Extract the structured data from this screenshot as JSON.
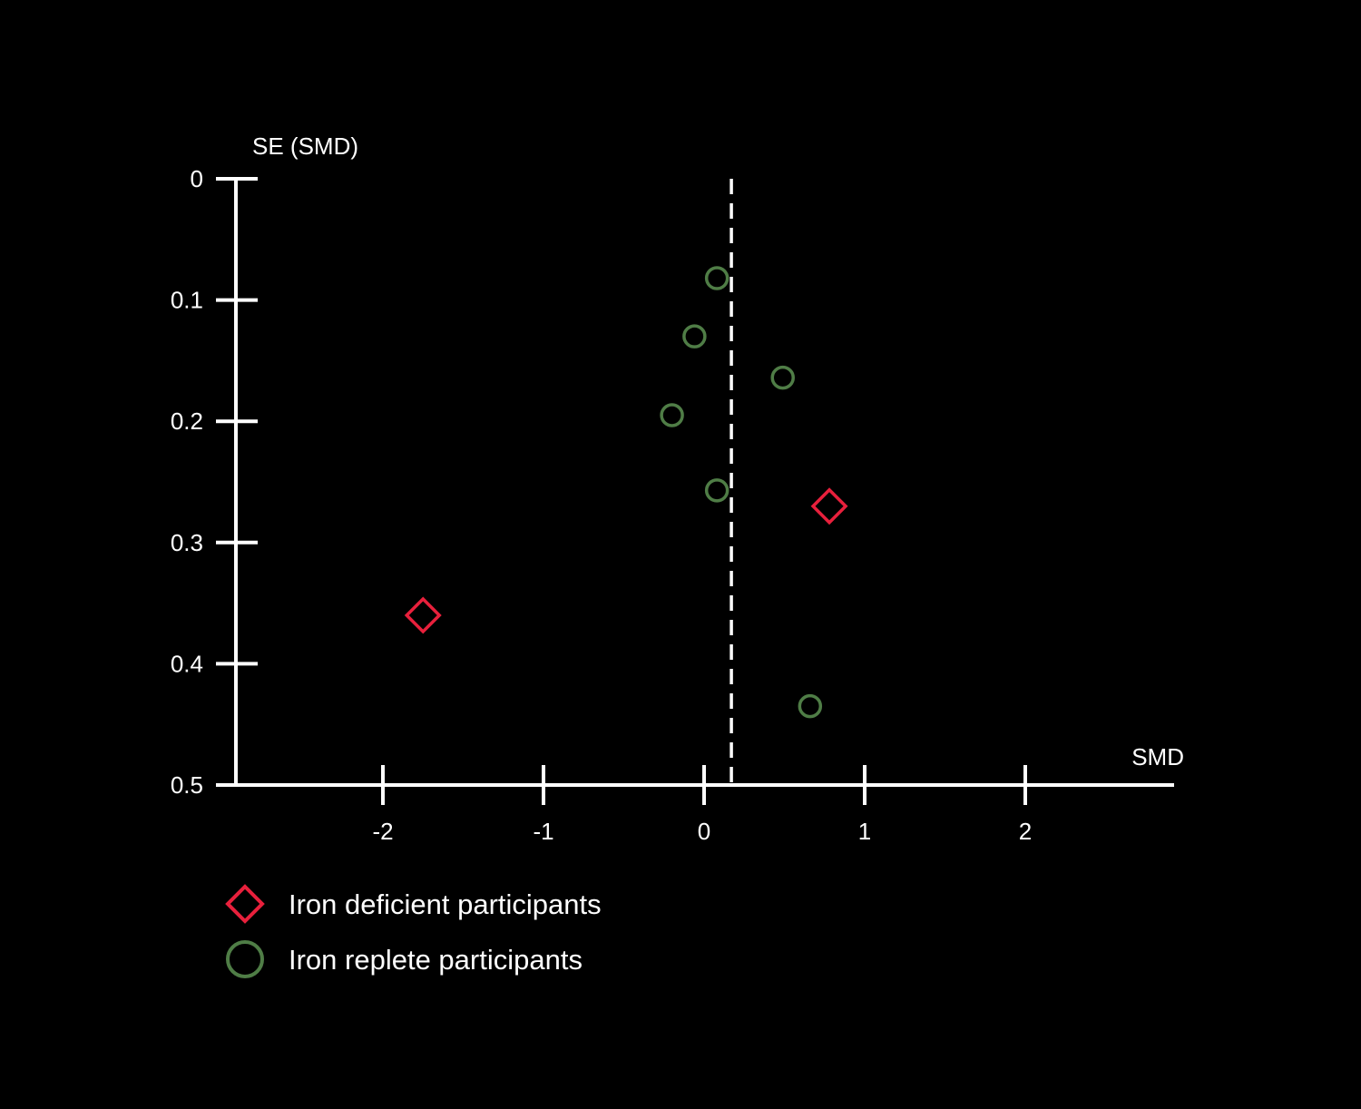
{
  "chart_data": {
    "type": "scatter",
    "title": "",
    "xlabel": "SMD",
    "ylabel": "SE (SMD)",
    "x_ticks": [
      -2,
      -1,
      0,
      1,
      2
    ],
    "x_tick_labels": [
      "-2",
      "-1",
      "0",
      "1",
      "2"
    ],
    "y_ticks": [
      0,
      0.1,
      0.2,
      0.3,
      0.4,
      0.5
    ],
    "y_tick_labels": [
      "0",
      "0.1",
      "0.2",
      "0.3",
      "0.4",
      "0.5"
    ],
    "ylim": [
      0,
      0.5
    ],
    "y_inverted": true,
    "grid": false,
    "reference_line_x": 0.17,
    "reference_line_style": "dashed",
    "legend_position": "bottom-left",
    "series": [
      {
        "name": "Iron deficient participants",
        "marker": "diamond",
        "color": "#e8203c",
        "points": [
          {
            "x": 0.78,
            "y": 0.27
          },
          {
            "x": -1.75,
            "y": 0.36
          }
        ]
      },
      {
        "name": "Iron replete participants",
        "marker": "circle",
        "color": "#4f7d46",
        "points": [
          {
            "x": 0.08,
            "y": 0.082
          },
          {
            "x": -0.06,
            "y": 0.13
          },
          {
            "x": 0.49,
            "y": 0.164
          },
          {
            "x": -0.2,
            "y": 0.195
          },
          {
            "x": 0.08,
            "y": 0.257
          },
          {
            "x": 0.66,
            "y": 0.435
          }
        ]
      }
    ]
  }
}
